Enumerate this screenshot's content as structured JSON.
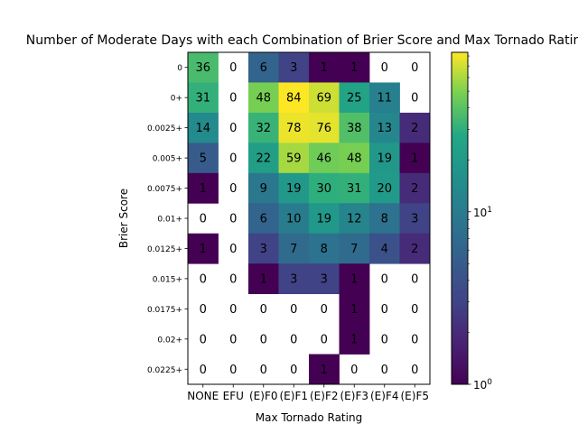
{
  "chart_data": {
    "type": "heatmap",
    "title": "Number of Moderate Days with each Combination of Brier Score and Max Tornado Rating",
    "xlabel": "Max Tornado Rating",
    "ylabel": "Brier Score",
    "x_categories": [
      "NONE",
      "EFU",
      "(E)F0",
      "(E)F1",
      "(E)F2",
      "(E)F3",
      "(E)F4",
      "(E)F5"
    ],
    "y_categories": [
      "0",
      "0+",
      "0.0025+",
      "0.005+",
      "0.0075+",
      "0.01+",
      "0.0125+",
      "0.015+",
      "0.0175+",
      "0.02+",
      "0.0225+"
    ],
    "values": [
      [
        36,
        0,
        6,
        3,
        1,
        1,
        0,
        0
      ],
      [
        31,
        0,
        48,
        84,
        69,
        25,
        11,
        0
      ],
      [
        14,
        0,
        32,
        78,
        76,
        38,
        13,
        2
      ],
      [
        5,
        0,
        22,
        59,
        46,
        48,
        19,
        1
      ],
      [
        1,
        0,
        9,
        19,
        30,
        31,
        20,
        2
      ],
      [
        0,
        0,
        6,
        10,
        19,
        12,
        8,
        3
      ],
      [
        1,
        0,
        3,
        7,
        8,
        7,
        4,
        2
      ],
      [
        0,
        0,
        1,
        3,
        3,
        1,
        0,
        0
      ],
      [
        0,
        0,
        0,
        0,
        0,
        1,
        0,
        0
      ],
      [
        0,
        0,
        0,
        0,
        0,
        1,
        0,
        0
      ],
      [
        0,
        0,
        0,
        0,
        1,
        0,
        0,
        0
      ]
    ],
    "colormap": "viridis",
    "color_scale": "log",
    "zero_cells": "blank",
    "vmin": 1,
    "vmax": 84,
    "colorbar": {
      "position": "right",
      "major_ticks": [
        {
          "value": 1,
          "base": "10",
          "exp": "0"
        },
        {
          "value": 10,
          "base": "10",
          "exp": "1"
        }
      ]
    },
    "grid": false
  }
}
